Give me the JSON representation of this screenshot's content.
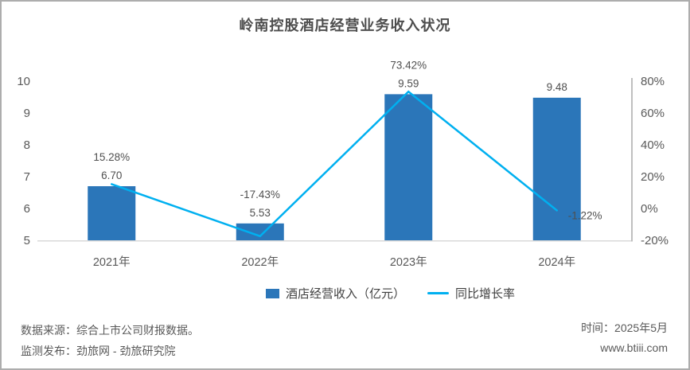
{
  "title": "岭南控股酒店经营业务收入状况",
  "chart_data": {
    "type": "bar+line combo",
    "title": "岭南控股酒店经营业务收入状况",
    "categories": [
      "2021年",
      "2022年",
      "2023年",
      "2024年"
    ],
    "series": [
      {
        "name": "酒店经营收入（亿元）",
        "type": "bar",
        "axis": "left",
        "values": [
          6.7,
          5.53,
          9.59,
          9.48
        ],
        "labels": [
          "6.70",
          "5.53",
          "9.59",
          "9.48"
        ],
        "color": "#2b76b9"
      },
      {
        "name": "同比增长率",
        "type": "line",
        "axis": "right",
        "values": [
          15.28,
          -17.43,
          73.42,
          -1.22
        ],
        "labels": [
          "15.28%",
          "-17.43%",
          "73.42%",
          "-1.22%"
        ],
        "color": "#00b0f0"
      }
    ],
    "left_axis": {
      "min": 5,
      "max": 10,
      "step": 1,
      "ticks": [
        "10",
        "9",
        "8",
        "7",
        "6",
        "5"
      ]
    },
    "right_axis": {
      "min": -20,
      "max": 80,
      "step": 20,
      "ticks": [
        "80%",
        "60%",
        "40%",
        "20%",
        "0%",
        "-20%"
      ]
    },
    "grid": false,
    "legend_position": "bottom",
    "growth_label_layout": [
      "stacked",
      "stacked",
      "stacked",
      "right"
    ]
  },
  "legend": {
    "bar_label": "酒店经营收入（亿元）",
    "line_label": "同比增长率"
  },
  "footer": {
    "source_line": "数据来源：综合上市公司财报数据。",
    "publisher_line": "监测发布：劲旅网 - 劲旅研究院",
    "time_line": "时间：2025年5月",
    "website": "www.btiii.com"
  },
  "colors": {
    "bar": "#2b76b9",
    "line": "#00b0f0",
    "axis_text": "#595959",
    "baseline": "#d9d9d9",
    "secondary_axis_line": "#bfbfbf",
    "title_text": "#4d4d4d",
    "frame_border": "#adadad"
  }
}
